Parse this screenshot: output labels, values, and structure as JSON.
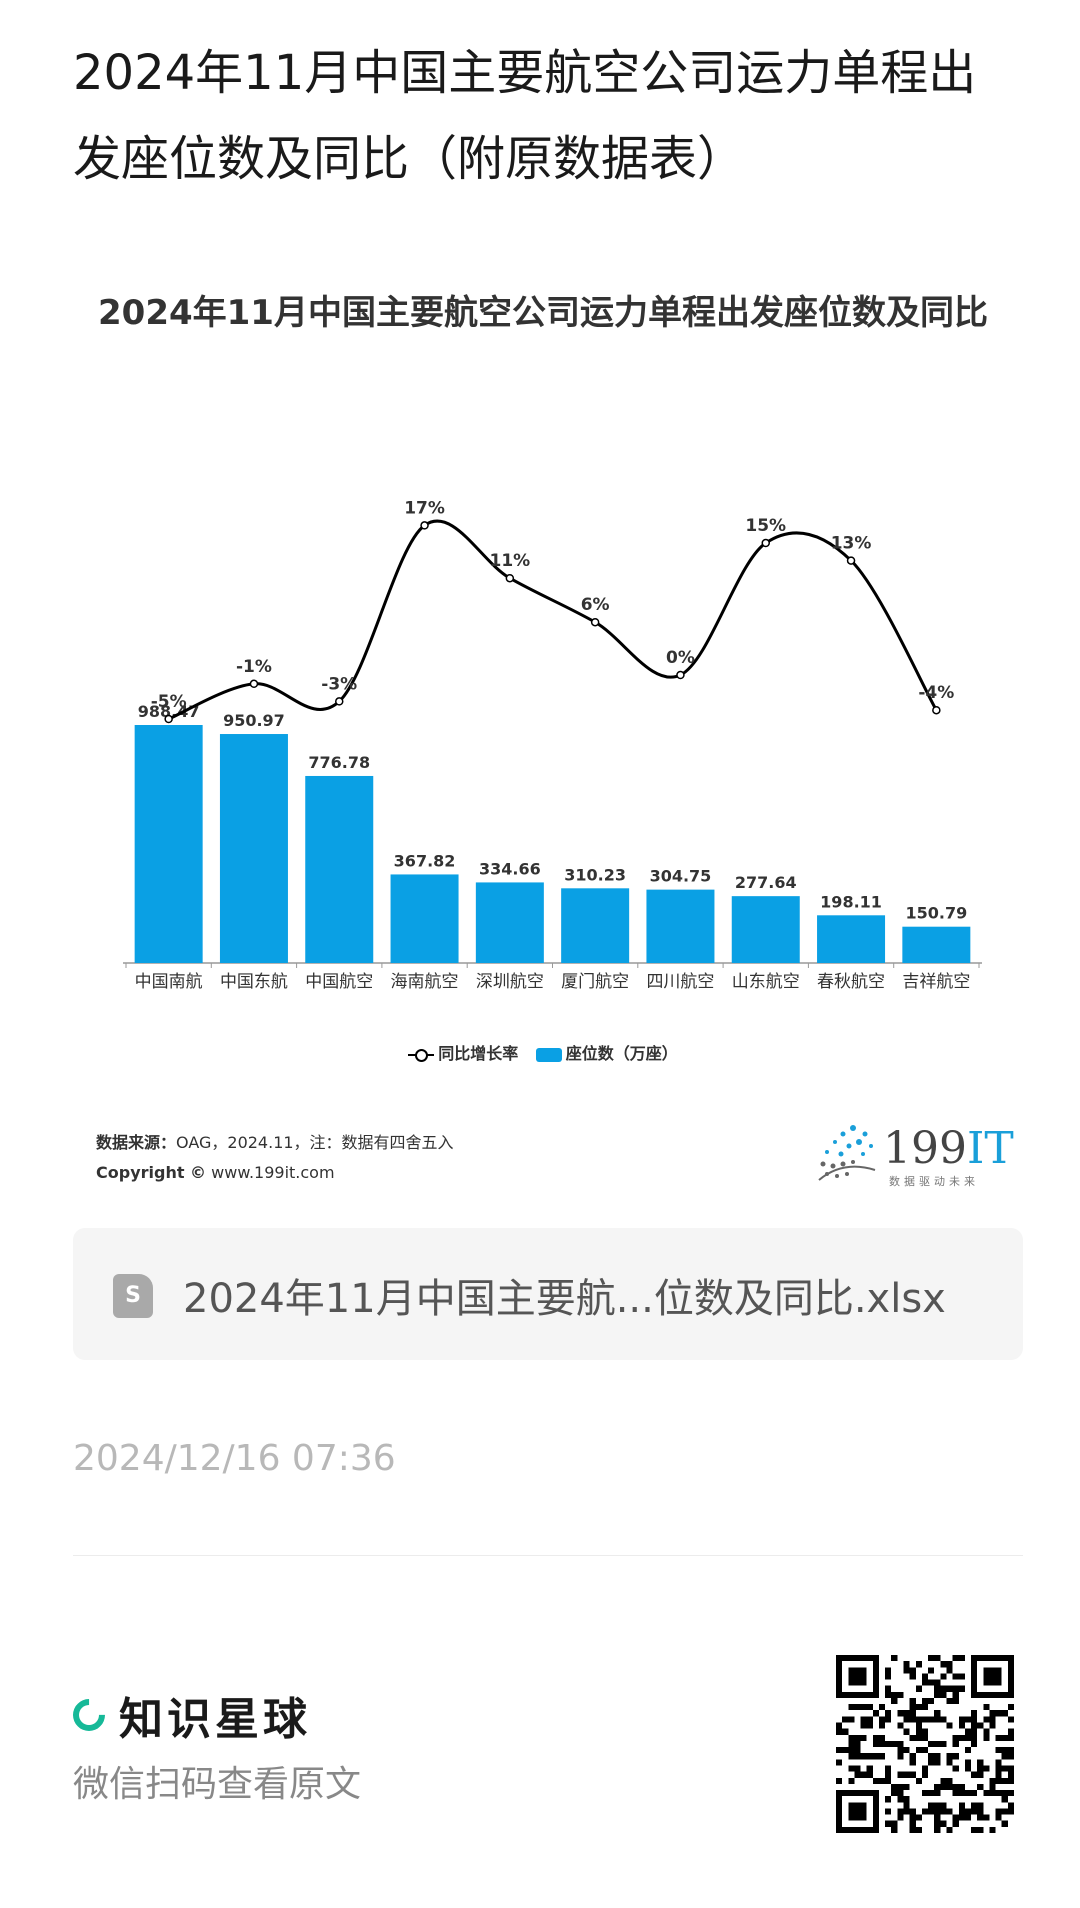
{
  "post": {
    "title": "2024年11月中国主要航空公司运力单程出发座位数及同比（附原数据表）",
    "file_name": "2024年11月中国主要航...位数及同比.xlsx",
    "file_icon": "S",
    "date": "2024/12/16 07:36"
  },
  "chart_source": {
    "label": "数据来源：",
    "text": "OAG，2024.11，注：数据有四舍五入",
    "copyright_label": "Copyright ©",
    "copyright_url": "www.199it.com"
  },
  "brand": {
    "name_num": "199",
    "name_it": "IT",
    "slogan": "数据驱动未来"
  },
  "footer": {
    "app_name": "知识星球",
    "scan_hint": "微信扫码查看原文"
  },
  "colors": {
    "bar": "#0aa0e4",
    "line": "#000000",
    "brand_green": "#16b998"
  },
  "chart_data": {
    "type": "bar",
    "title": "2024年11月中国主要航空公司运力单程出发座位数及同比",
    "categories": [
      "中国南航",
      "中国东航",
      "中国航空",
      "海南航空",
      "深圳航空",
      "厦门航空",
      "四川航空",
      "山东航空",
      "春秋航空",
      "吉祥航空"
    ],
    "series": [
      {
        "name": "座位数（万座）",
        "type": "bar",
        "values": [
          988.47,
          950.97,
          776.78,
          367.82,
          334.66,
          310.23,
          304.75,
          277.64,
          198.11,
          150.79
        ]
      },
      {
        "name": "同比增长率",
        "type": "line",
        "values": [
          -5,
          -1,
          -3,
          17,
          11,
          6,
          0,
          15,
          13,
          -4
        ],
        "labels": [
          "-5%",
          "-1%",
          "-3%",
          "17%",
          "11%",
          "6%",
          "0%",
          "15%",
          "13%",
          "-4%"
        ]
      }
    ],
    "legend": [
      "同比增长率",
      "座位数（万座）"
    ],
    "legend_position": "bottom",
    "grid": false
  }
}
